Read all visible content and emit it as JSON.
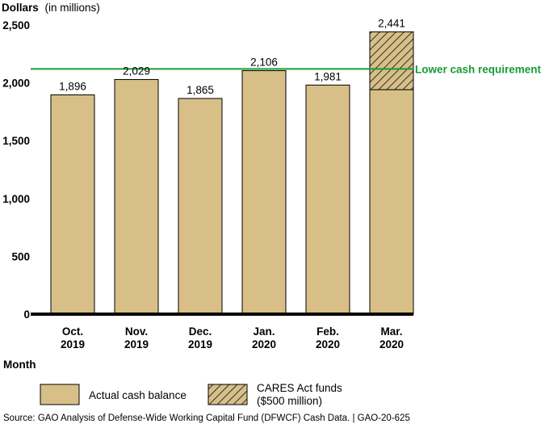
{
  "chart_data": {
    "type": "bar",
    "ylabel_bold": "Dollars",
    "ylabel_rest": "(in millions)",
    "xlabel": "Month",
    "categories": [
      {
        "line1": "Oct.",
        "line2": "2019"
      },
      {
        "line1": "Nov.",
        "line2": "2019"
      },
      {
        "line1": "Dec.",
        "line2": "2019"
      },
      {
        "line1": "Jan.",
        "line2": "2020"
      },
      {
        "line1": "Feb.",
        "line2": "2020"
      },
      {
        "line1": "Mar.",
        "line2": "2020"
      }
    ],
    "series": [
      {
        "name": "Actual cash balance",
        "values": [
          1896,
          2029,
          1865,
          2106,
          1981,
          1941
        ],
        "color": "#d7bf87"
      },
      {
        "name": "CARES Act funds ($500 million)",
        "values": [
          0,
          0,
          0,
          0,
          0,
          500
        ],
        "color": "#d7bf87",
        "pattern": "diagonal-hatch"
      }
    ],
    "data_labels": [
      "1,896",
      "2,029",
      "1,865",
      "2,106",
      "1,981",
      "2,441"
    ],
    "yticks": [
      0,
      500,
      1000,
      1500,
      2000,
      2500
    ],
    "ytick_labels": [
      "0",
      "500",
      "1,000",
      "1,500",
      "2,000",
      "2,500"
    ],
    "ylim": [
      0,
      2500
    ],
    "reference_line": {
      "label": "Lower cash requirement",
      "value": 2120,
      "color": "#1a9c3a"
    },
    "legend": {
      "placement": "bottom",
      "items": [
        {
          "label": "Actual cash balance"
        },
        {
          "label_line1": "CARES Act funds",
          "label_line2": "($500 million)"
        }
      ]
    },
    "grid": false
  },
  "source": "Source: GAO Analysis of Defense-Wide Working Capital Fund (DFWCF) Cash Data.  |  GAO-20-625"
}
